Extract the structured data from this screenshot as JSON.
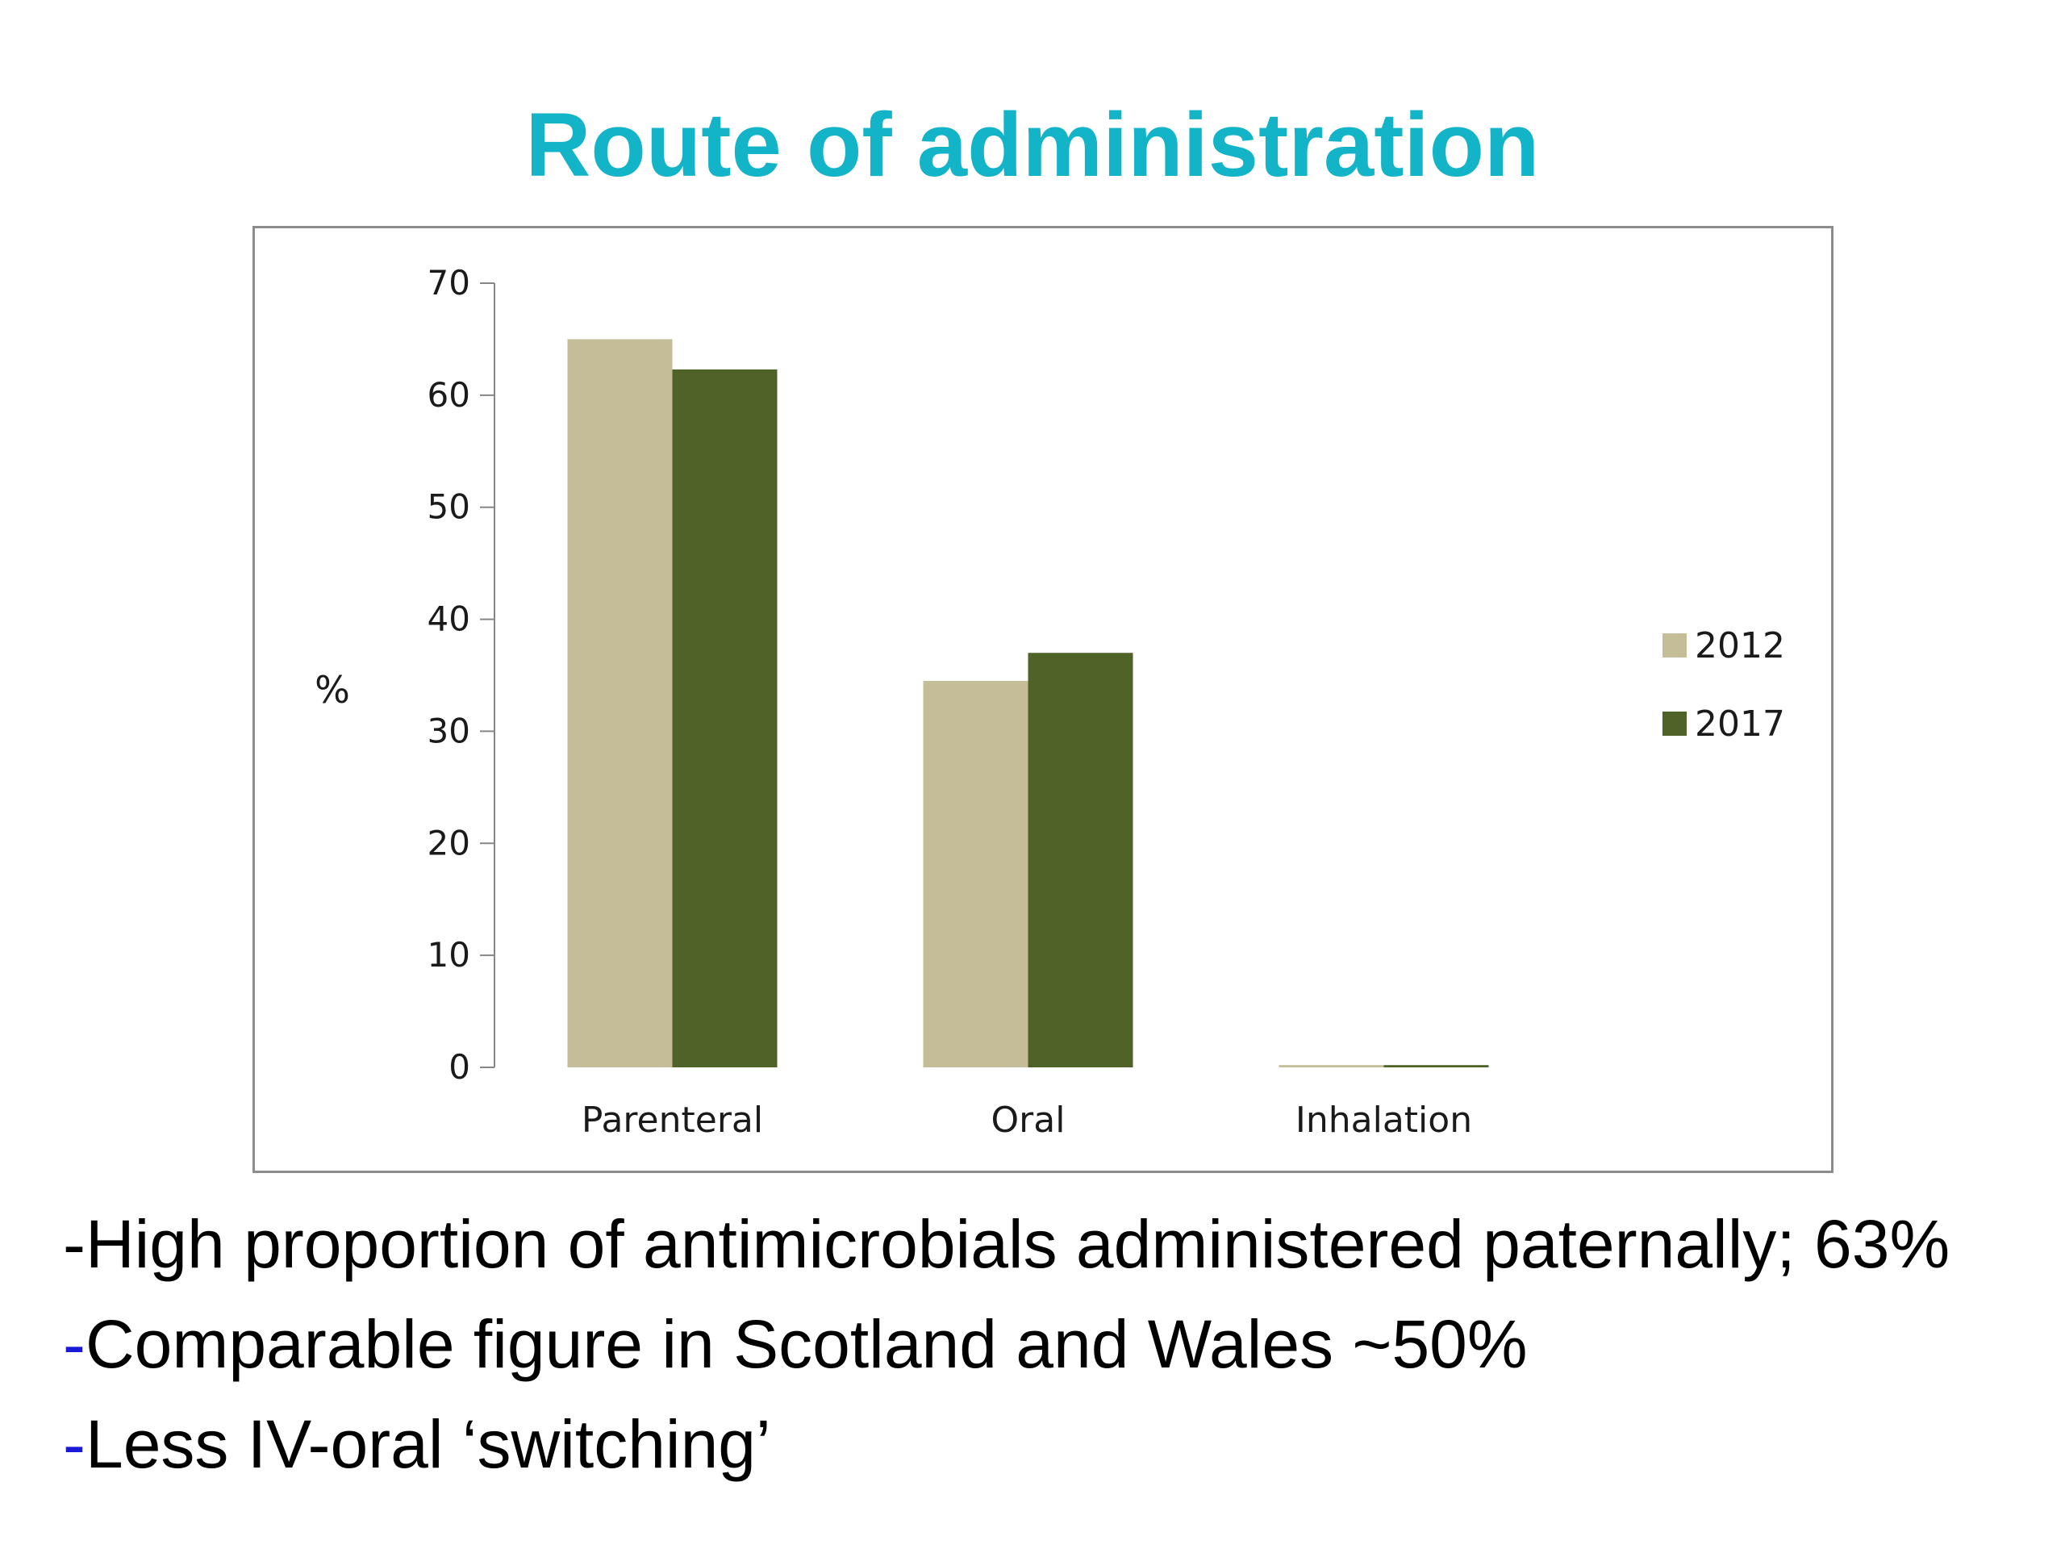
{
  "slide": {
    "title": "Route of administration",
    "title_color": "#14b4c8"
  },
  "chart_data": {
    "type": "bar",
    "title": "",
    "xlabel": "",
    "ylabel": "%",
    "ylim": [
      0,
      70
    ],
    "yticks": [
      0,
      10,
      20,
      30,
      40,
      50,
      60,
      70
    ],
    "categories": [
      "Parenteral",
      "Oral",
      "Inhalation"
    ],
    "series": [
      {
        "name": "2012",
        "color": "#c4bd97",
        "values": [
          65,
          34.5,
          0.2
        ]
      },
      {
        "name": "2017",
        "color": "#4f6228",
        "values": [
          62.3,
          37,
          0.2
        ]
      }
    ],
    "legend_position": "right",
    "grid": false
  },
  "bullets": [
    {
      "dash": "-",
      "dash_color": "#000000",
      "text": "High proportion of antimicrobials administered paternally; 63%"
    },
    {
      "dash": "-",
      "dash_color": "#1a1ad6",
      "text": "Comparable figure in Scotland and Wales ~50%"
    },
    {
      "dash": "-",
      "dash_color": "#1a1ad6",
      "text": "Less IV-oral ‘switching’"
    }
  ]
}
